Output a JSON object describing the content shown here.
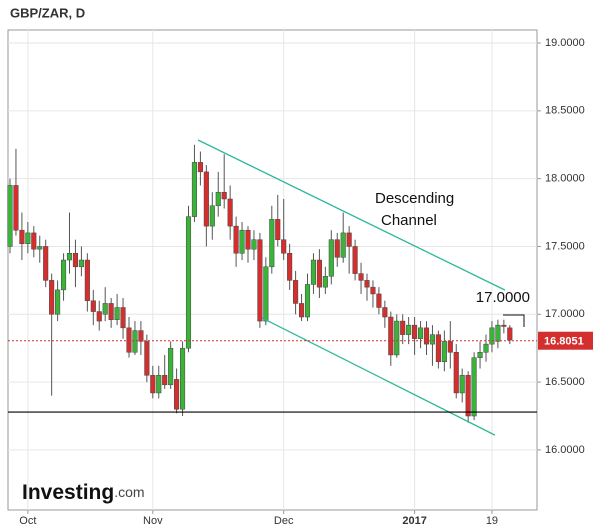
{
  "chart_data": {
    "type": "candlestick",
    "title": "GBP/ZAR, D",
    "logo": [
      "Investing",
      ".com"
    ],
    "categories": [
      null,
      null,
      null,
      "Oct",
      null,
      null,
      null,
      null,
      null,
      null,
      null,
      null,
      null,
      null,
      null,
      null,
      null,
      null,
      null,
      null,
      null,
      null,
      null,
      null,
      "Nov",
      null,
      null,
      null,
      null,
      null,
      null,
      null,
      null,
      null,
      null,
      null,
      null,
      null,
      null,
      null,
      null,
      null,
      null,
      null,
      null,
      null,
      "Dec",
      null,
      null,
      null,
      null,
      null,
      null,
      null,
      null,
      null,
      null,
      null,
      null,
      null,
      null,
      null,
      null,
      null,
      null,
      null,
      null,
      null,
      "2017",
      null,
      null,
      null,
      null,
      null,
      null,
      null,
      null,
      null,
      null,
      null,
      null,
      "19",
      null,
      null,
      null
    ],
    "open": [
      17.5,
      17.95,
      17.62,
      17.52,
      17.6,
      17.48,
      17.5,
      17.25,
      17.0,
      17.18,
      17.4,
      17.45,
      17.35,
      17.4,
      17.1,
      17.02,
      17.0,
      17.08,
      16.96,
      17.05,
      16.9,
      16.72,
      16.88,
      16.8,
      16.55,
      16.42,
      16.55,
      16.48,
      16.52,
      16.3,
      16.75,
      17.72,
      18.12,
      18.05,
      17.65,
      17.8,
      17.9,
      17.85,
      17.65,
      17.45,
      17.62,
      17.48,
      17.55,
      16.95,
      17.35,
      17.7,
      17.55,
      17.45,
      17.25,
      17.08,
      16.98,
      17.22,
      17.4,
      17.2,
      17.28,
      17.55,
      17.42,
      17.6,
      17.5,
      17.3,
      17.25,
      17.2,
      17.15,
      17.05,
      16.98,
      16.7,
      16.95,
      16.85,
      16.92,
      16.82,
      16.9,
      16.78,
      16.85,
      16.65,
      16.8,
      16.72,
      16.42,
      16.55,
      16.25,
      16.68,
      16.72,
      16.78,
      16.8,
      16.92,
      16.9
    ],
    "high": [
      18.0,
      18.22,
      17.75,
      17.68,
      17.65,
      17.58,
      17.55,
      17.3,
      17.25,
      17.45,
      17.75,
      17.55,
      17.5,
      17.45,
      17.18,
      17.1,
      17.2,
      17.12,
      17.15,
      17.12,
      16.98,
      16.95,
      16.95,
      16.85,
      16.62,
      16.62,
      16.7,
      16.8,
      16.6,
      16.8,
      17.8,
      18.25,
      18.2,
      18.1,
      17.9,
      18.05,
      18.18,
      17.95,
      17.72,
      17.68,
      17.65,
      17.62,
      17.6,
      17.42,
      17.8,
      17.88,
      17.85,
      17.52,
      17.32,
      17.15,
      17.3,
      17.45,
      17.48,
      17.35,
      17.62,
      17.6,
      17.75,
      17.65,
      17.55,
      17.38,
      17.3,
      17.25,
      17.2,
      17.1,
      17.02,
      17.0,
      17.0,
      16.98,
      16.98,
      16.95,
      16.95,
      16.92,
      16.88,
      16.88,
      16.95,
      16.78,
      16.6,
      16.58,
      16.72,
      16.8,
      16.85,
      16.95,
      16.96,
      16.96,
      16.92
    ],
    "low": [
      17.45,
      17.58,
      17.4,
      17.45,
      17.42,
      17.38,
      17.2,
      16.4,
      16.95,
      17.1,
      17.3,
      17.2,
      17.28,
      17.02,
      16.92,
      16.88,
      16.95,
      16.9,
      16.92,
      16.82,
      16.68,
      16.7,
      16.7,
      16.5,
      16.38,
      16.38,
      16.45,
      16.45,
      16.27,
      16.25,
      16.72,
      17.68,
      17.95,
      17.5,
      17.55,
      17.72,
      17.78,
      17.55,
      17.35,
      17.4,
      17.38,
      17.4,
      16.9,
      16.92,
      17.3,
      17.5,
      17.4,
      17.18,
      17.0,
      16.95,
      16.95,
      17.15,
      17.12,
      17.15,
      17.22,
      17.35,
      17.38,
      17.3,
      17.25,
      17.15,
      17.1,
      17.05,
      17.0,
      16.9,
      16.62,
      16.68,
      16.78,
      16.78,
      16.7,
      16.75,
      16.7,
      16.62,
      16.6,
      16.58,
      16.6,
      16.38,
      16.35,
      16.2,
      16.22,
      16.6,
      16.65,
      16.72,
      16.75,
      16.86,
      16.78
    ],
    "close": [
      17.95,
      17.62,
      17.52,
      17.6,
      17.48,
      17.5,
      17.25,
      17.0,
      17.18,
      17.4,
      17.45,
      17.35,
      17.4,
      17.1,
      17.02,
      16.95,
      17.08,
      16.96,
      17.05,
      16.9,
      16.72,
      16.88,
      16.8,
      16.55,
      16.42,
      16.55,
      16.48,
      16.75,
      16.3,
      16.75,
      17.72,
      18.12,
      18.05,
      17.65,
      17.8,
      17.9,
      17.85,
      17.65,
      17.45,
      17.62,
      17.48,
      17.55,
      16.95,
      17.35,
      17.7,
      17.55,
      17.45,
      17.25,
      17.08,
      16.98,
      17.22,
      17.4,
      17.2,
      17.28,
      17.55,
      17.42,
      17.6,
      17.5,
      17.3,
      17.25,
      17.2,
      17.15,
      17.05,
      16.98,
      16.7,
      16.95,
      16.85,
      16.92,
      16.82,
      16.9,
      16.78,
      16.85,
      16.65,
      16.8,
      16.72,
      16.42,
      16.55,
      16.25,
      16.68,
      16.72,
      16.78,
      16.9,
      16.92,
      16.91,
      16.81
    ],
    "up_color": "#3bb33b",
    "down_color": "#d32f2f",
    "ylim": [
      15.557,
      19.096
    ],
    "yticks": [
      {
        "value": 16,
        "label": "16.0000"
      },
      {
        "value": 16.5,
        "label": "16.5000"
      },
      {
        "value": 17,
        "label": "17.0000"
      },
      {
        "value": 17.5,
        "label": "17.5000"
      },
      {
        "value": 18,
        "label": "18.0000"
      },
      {
        "value": 18.5,
        "label": "18.5000"
      },
      {
        "value": 19,
        "label": "19.0000"
      }
    ],
    "grid": true,
    "trendlines": [
      {
        "x": [
          31.6,
          83.2
        ],
        "y": [
          18.285,
          17.178
        ],
        "color": "#2eb89a"
      },
      {
        "x": [
          42.4,
          81.5
        ],
        "y": [
          16.972,
          16.109
        ],
        "color": "#2eb89a"
      }
    ],
    "support_level": 16.279,
    "last_price": 16.8051,
    "annotations": [
      "Descending",
      "Channel",
      "17.0000"
    ]
  }
}
